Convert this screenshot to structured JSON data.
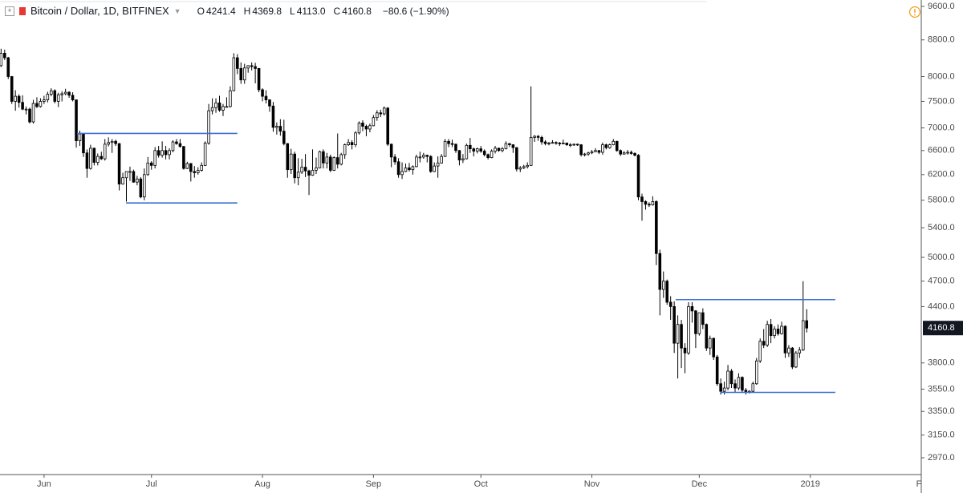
{
  "header": {
    "title": "Bitcoin / Dollar, 1D, BITFINEX",
    "ohlc_labels": [
      "O",
      "H",
      "L",
      "C"
    ],
    "ohlc_values": [
      "4241.4",
      "4369.8",
      "4113.0",
      "4160.8"
    ],
    "change": "−80.6 (−1.90%)"
  },
  "chart_data": {
    "type": "candlestick",
    "log_scale": true,
    "grid": false,
    "up_color": "#ffffff",
    "down_color": "#000000",
    "border_color": "#000000",
    "level_color": "#3b6fd4",
    "ylim": [
      2843,
      9761
    ],
    "xlim": [
      -0.3,
      257
    ],
    "yticks": [
      {
        "value": 9600,
        "label": "9600.0"
      },
      {
        "value": 8800,
        "label": "8800.0"
      },
      {
        "value": 8000,
        "label": "8000.0"
      },
      {
        "value": 7500,
        "label": "7500.0"
      },
      {
        "value": 7000,
        "label": "7000.0"
      },
      {
        "value": 6600,
        "label": "6600.0"
      },
      {
        "value": 6200,
        "label": "6200.0"
      },
      {
        "value": 5800,
        "label": "5800.0"
      },
      {
        "value": 5400,
        "label": "5400.0"
      },
      {
        "value": 5000,
        "label": "5000.0"
      },
      {
        "value": 4700,
        "label": "4700.0"
      },
      {
        "value": 4400,
        "label": "4400.0"
      },
      {
        "value": 3800,
        "label": "3800.0"
      },
      {
        "value": 3550,
        "label": "3550.0"
      },
      {
        "value": 3350,
        "label": "3350.0"
      },
      {
        "value": 3150,
        "label": "3150.0"
      },
      {
        "value": 2970,
        "label": "2970.0"
      }
    ],
    "xticks": [
      {
        "value": 12,
        "label": "Jun"
      },
      {
        "value": 42,
        "label": "Jul"
      },
      {
        "value": 73,
        "label": "Aug"
      },
      {
        "value": 104,
        "label": "Sep"
      },
      {
        "value": 134,
        "label": "Oct"
      },
      {
        "value": 165,
        "label": "Nov"
      },
      {
        "value": 195,
        "label": "Dec"
      },
      {
        "value": 226,
        "label": "2019"
      },
      {
        "value": 257,
        "label": "Fe"
      }
    ],
    "last_price": {
      "value": 4160.8,
      "label": "4160.8"
    },
    "levels": [
      {
        "value": 6900,
        "from": 21.2,
        "to": 66
      },
      {
        "value": 5760,
        "from": 34.9,
        "to": 66
      },
      {
        "value": 4480,
        "from": 188.4,
        "to": 233
      },
      {
        "value": 3520,
        "from": 201,
        "to": 233
      }
    ],
    "candles": [
      [
        8230,
        8600,
        8200,
        8500
      ],
      [
        8500,
        8580,
        8350,
        8400
      ],
      [
        8400,
        8420,
        7950,
        8000
      ],
      [
        8000,
        8010,
        7450,
        7500
      ],
      [
        7500,
        7720,
        7320,
        7600
      ],
      [
        7600,
        7640,
        7380,
        7480
      ],
      [
        7480,
        7620,
        7330,
        7350
      ],
      [
        7350,
        7400,
        7250,
        7350
      ],
      [
        7350,
        7380,
        7080,
        7110
      ],
      [
        7110,
        7530,
        7080,
        7460
      ],
      [
        7460,
        7580,
        7370,
        7400
      ],
      [
        7400,
        7560,
        7380,
        7500
      ],
      [
        7500,
        7610,
        7450,
        7530
      ],
      [
        7530,
        7690,
        7480,
        7640
      ],
      [
        7640,
        7760,
        7600,
        7710
      ],
      [
        7710,
        7740,
        7460,
        7500
      ],
      [
        7500,
        7670,
        7390,
        7630
      ],
      [
        7630,
        7700,
        7500,
        7650
      ],
      [
        7650,
        7750,
        7620,
        7680
      ],
      [
        7680,
        7700,
        7570,
        7620
      ],
      [
        7620,
        7680,
        7500,
        7530
      ],
      [
        7530,
        7530,
        6650,
        6770
      ],
      [
        6770,
        6950,
        6680,
        6890
      ],
      [
        6890,
        6900,
        6490,
        6560
      ],
      [
        6560,
        6620,
        6150,
        6300
      ],
      [
        6300,
        6700,
        6280,
        6640
      ],
      [
        6640,
        6650,
        6350,
        6400
      ],
      [
        6400,
        6550,
        6350,
        6500
      ],
      [
        6500,
        6580,
        6440,
        6460
      ],
      [
        6460,
        6800,
        6430,
        6710
      ],
      [
        6710,
        6830,
        6670,
        6740
      ],
      [
        6740,
        6800,
        6560,
        6760
      ],
      [
        6760,
        6790,
        6680,
        6720
      ],
      [
        6720,
        6730,
        5950,
        6050
      ],
      [
        6050,
        6230,
        6040,
        6150
      ],
      [
        6150,
        6250,
        5780,
        6250
      ],
      [
        6250,
        6330,
        6100,
        6250
      ],
      [
        6250,
        6280,
        6070,
        6080
      ],
      [
        6080,
        6180,
        6030,
        6130
      ],
      [
        6130,
        6160,
        5830,
        5850
      ],
      [
        5850,
        6300,
        5800,
        6200
      ],
      [
        6200,
        6490,
        6180,
        6390
      ],
      [
        6390,
        6420,
        6280,
        6350
      ],
      [
        6350,
        6660,
        6300,
        6600
      ],
      [
        6600,
        6680,
        6480,
        6520
      ],
      [
        6520,
        6760,
        6480,
        6600
      ],
      [
        6600,
        6680,
        6450,
        6530
      ],
      [
        6530,
        6640,
        6450,
        6600
      ],
      [
        6600,
        6780,
        6570,
        6750
      ],
      [
        6750,
        6800,
        6700,
        6720
      ],
      [
        6720,
        6800,
        6650,
        6670
      ],
      [
        6670,
        6680,
        6280,
        6300
      ],
      [
        6300,
        6410,
        6290,
        6380
      ],
      [
        6380,
        6390,
        6090,
        6250
      ],
      [
        6250,
        6340,
        6150,
        6230
      ],
      [
        6230,
        6320,
        6200,
        6270
      ],
      [
        6270,
        6400,
        6250,
        6350
      ],
      [
        6350,
        6760,
        6340,
        6730
      ],
      [
        6730,
        7450,
        6700,
        7320
      ],
      [
        7320,
        7560,
        7250,
        7380
      ],
      [
        7380,
        7560,
        7280,
        7470
      ],
      [
        7470,
        7610,
        7300,
        7330
      ],
      [
        7330,
        7450,
        7220,
        7400
      ],
      [
        7400,
        7580,
        7380,
        7400
      ],
      [
        7400,
        7800,
        7380,
        7710
      ],
      [
        7710,
        8500,
        7700,
        8400
      ],
      [
        8400,
        8480,
        8050,
        8170
      ],
      [
        8170,
        8300,
        7850,
        7930
      ],
      [
        7930,
        8270,
        7850,
        8180
      ],
      [
        8180,
        8240,
        8080,
        8230
      ],
      [
        8230,
        8300,
        8130,
        8210
      ],
      [
        8210,
        8290,
        7860,
        8170
      ],
      [
        8170,
        8180,
        7680,
        7730
      ],
      [
        7730,
        7760,
        7500,
        7600
      ],
      [
        7600,
        7720,
        7460,
        7530
      ],
      [
        7530,
        7540,
        7300,
        7410
      ],
      [
        7410,
        7490,
        6930,
        7010
      ],
      [
        7010,
        7100,
        6880,
        7030
      ],
      [
        7030,
        7160,
        6860,
        6940
      ],
      [
        6940,
        7150,
        6690,
        6720
      ],
      [
        6720,
        6730,
        6150,
        6280
      ],
      [
        6280,
        6630,
        6210,
        6540
      ],
      [
        6540,
        6580,
        6060,
        6150
      ],
      [
        6150,
        6470,
        6030,
        6240
      ],
      [
        6240,
        6460,
        6210,
        6320
      ],
      [
        6320,
        6540,
        6160,
        6260
      ],
      [
        6260,
        6280,
        5880,
        6190
      ],
      [
        6190,
        6620,
        6180,
        6270
      ],
      [
        6270,
        6480,
        6210,
        6310
      ],
      [
        6310,
        6600,
        6300,
        6580
      ],
      [
        6580,
        6620,
        6300,
        6390
      ],
      [
        6390,
        6560,
        6300,
        6490
      ],
      [
        6490,
        6530,
        6240,
        6270
      ],
      [
        6270,
        6500,
        6260,
        6480
      ],
      [
        6480,
        6900,
        6300,
        6370
      ],
      [
        6370,
        6560,
        6350,
        6530
      ],
      [
        6530,
        6720,
        6460,
        6700
      ],
      [
        6700,
        6800,
        6680,
        6740
      ],
      [
        6740,
        6780,
        6620,
        6700
      ],
      [
        6700,
        6940,
        6660,
        6910
      ],
      [
        6910,
        7120,
        6880,
        7090
      ],
      [
        7090,
        7140,
        6940,
        7030
      ],
      [
        7030,
        7060,
        6850,
        6980
      ],
      [
        6980,
        7080,
        6920,
        7040
      ],
      [
        7040,
        7240,
        7030,
        7190
      ],
      [
        7190,
        7330,
        7130,
        7280
      ],
      [
        7280,
        7340,
        7200,
        7260
      ],
      [
        7260,
        7400,
        7230,
        7370
      ],
      [
        7370,
        7390,
        6680,
        6710
      ],
      [
        6710,
        6720,
        6320,
        6490
      ],
      [
        6490,
        6540,
        6360,
        6410
      ],
      [
        6410,
        6470,
        6150,
        6200
      ],
      [
        6200,
        6400,
        6130,
        6250
      ],
      [
        6250,
        6380,
        6240,
        6310
      ],
      [
        6310,
        6390,
        6250,
        6280
      ],
      [
        6280,
        6350,
        6200,
        6330
      ],
      [
        6330,
        6530,
        6320,
        6490
      ],
      [
        6490,
        6580,
        6400,
        6490
      ],
      [
        6490,
        6560,
        6460,
        6520
      ],
      [
        6520,
        6530,
        6400,
        6500
      ],
      [
        6500,
        6520,
        6230,
        6250
      ],
      [
        6250,
        6400,
        6240,
        6340
      ],
      [
        6340,
        6500,
        6150,
        6390
      ],
      [
        6390,
        6540,
        6380,
        6500
      ],
      [
        6500,
        6800,
        6490,
        6760
      ],
      [
        6760,
        6800,
        6660,
        6720
      ],
      [
        6720,
        6790,
        6660,
        6710
      ],
      [
        6710,
        6720,
        6560,
        6600
      ],
      [
        6600,
        6610,
        6350,
        6440
      ],
      [
        6440,
        6540,
        6390,
        6460
      ],
      [
        6460,
        6720,
        6450,
        6690
      ],
      [
        6690,
        6820,
        6560,
        6630
      ],
      [
        6630,
        6650,
        6500,
        6590
      ],
      [
        6590,
        6650,
        6550,
        6630
      ],
      [
        6630,
        6680,
        6560,
        6590
      ],
      [
        6590,
        6620,
        6500,
        6530
      ],
      [
        6530,
        6550,
        6450,
        6480
      ],
      [
        6480,
        6620,
        6470,
        6590
      ],
      [
        6590,
        6680,
        6550,
        6640
      ],
      [
        6640,
        6650,
        6580,
        6600
      ],
      [
        6600,
        6660,
        6570,
        6630
      ],
      [
        6630,
        6760,
        6620,
        6720
      ],
      [
        6720,
        6730,
        6660,
        6700
      ],
      [
        6700,
        6710,
        6560,
        6650
      ],
      [
        6650,
        6660,
        6250,
        6290
      ],
      [
        6290,
        6340,
        6240,
        6310
      ],
      [
        6310,
        6360,
        6290,
        6330
      ],
      [
        6330,
        6400,
        6300,
        6350
      ],
      [
        6350,
        7800,
        6340,
        6830
      ],
      [
        6830,
        6870,
        6750,
        6850
      ],
      [
        6850,
        6870,
        6770,
        6830
      ],
      [
        6830,
        6860,
        6700,
        6750
      ],
      [
        6750,
        6780,
        6690,
        6720
      ],
      [
        6720,
        6750,
        6690,
        6730
      ],
      [
        6730,
        6780,
        6720,
        6740
      ],
      [
        6740,
        6760,
        6700,
        6730
      ],
      [
        6730,
        6750,
        6680,
        6720
      ],
      [
        6720,
        6790,
        6710,
        6730
      ],
      [
        6730,
        6740,
        6680,
        6700
      ],
      [
        6700,
        6730,
        6660,
        6700
      ],
      [
        6700,
        6720,
        6680,
        6710
      ],
      [
        6710,
        6720,
        6680,
        6700
      ],
      [
        6700,
        6710,
        6500,
        6530
      ],
      [
        6530,
        6560,
        6500,
        6540
      ],
      [
        6540,
        6580,
        6510,
        6560
      ],
      [
        6560,
        6610,
        6540,
        6580
      ],
      [
        6580,
        6640,
        6570,
        6600
      ],
      [
        6600,
        6610,
        6540,
        6570
      ],
      [
        6570,
        6740,
        6530,
        6700
      ],
      [
        6700,
        6720,
        6620,
        6650
      ],
      [
        6650,
        6720,
        6630,
        6700
      ],
      [
        6700,
        6800,
        6690,
        6760
      ],
      [
        6760,
        6770,
        6580,
        6600
      ],
      [
        6600,
        6620,
        6510,
        6540
      ],
      [
        6540,
        6590,
        6530,
        6560
      ],
      [
        6560,
        6610,
        6530,
        6570
      ],
      [
        6570,
        6600,
        6530,
        6550
      ],
      [
        6550,
        6570,
        6500,
        6520
      ],
      [
        6520,
        6540,
        5800,
        5850
      ],
      [
        5850,
        5900,
        5500,
        5780
      ],
      [
        5780,
        5800,
        5660,
        5740
      ],
      [
        5740,
        5770,
        5700,
        5730
      ],
      [
        5730,
        5860,
        5720,
        5780
      ],
      [
        5780,
        5800,
        4900,
        5050
      ],
      [
        5050,
        5100,
        4300,
        4600
      ],
      [
        4600,
        4820,
        4500,
        4700
      ],
      [
        4700,
        4720,
        4420,
        4450
      ],
      [
        4450,
        4520,
        4250,
        4400
      ],
      [
        4400,
        4460,
        3900,
        4000
      ],
      [
        4000,
        4300,
        3650,
        4200
      ],
      [
        4200,
        4250,
        3750,
        3950
      ],
      [
        3950,
        4000,
        3700,
        3900
      ],
      [
        3900,
        4450,
        3880,
        4400
      ],
      [
        4400,
        4450,
        4220,
        4350
      ],
      [
        4350,
        4360,
        3950,
        4100
      ],
      [
        4100,
        4330,
        4080,
        4330
      ],
      [
        4330,
        4380,
        4150,
        4200
      ],
      [
        4200,
        4210,
        3920,
        3950
      ],
      [
        3950,
        4080,
        3880,
        4050
      ],
      [
        4050,
        4060,
        3830,
        3860
      ],
      [
        3860,
        3880,
        3580,
        3600
      ],
      [
        3600,
        3650,
        3500,
        3530
      ],
      [
        3530,
        3620,
        3500,
        3560
      ],
      [
        3560,
        3780,
        3540,
        3720
      ],
      [
        3720,
        3740,
        3560,
        3600
      ],
      [
        3600,
        3640,
        3520,
        3560
      ],
      [
        3560,
        3700,
        3540,
        3660
      ],
      [
        3660,
        3670,
        3520,
        3540
      ],
      [
        3540,
        3560,
        3500,
        3520
      ],
      [
        3520,
        3540,
        3510,
        3530
      ],
      [
        3530,
        3620,
        3520,
        3600
      ],
      [
        3600,
        3850,
        3590,
        3820
      ],
      [
        3820,
        4050,
        3800,
        4020
      ],
      [
        4020,
        4150,
        3950,
        3980
      ],
      [
        3980,
        4240,
        3960,
        4200
      ],
      [
        4200,
        4260,
        4000,
        4080
      ],
      [
        4080,
        4180,
        4050,
        4150
      ],
      [
        4150,
        4200,
        4080,
        4100
      ],
      [
        4100,
        4230,
        4090,
        4180
      ],
      [
        4180,
        4190,
        3850,
        3900
      ],
      [
        3900,
        3980,
        3860,
        3950
      ],
      [
        3950,
        3960,
        3740,
        3760
      ],
      [
        3760,
        3920,
        3750,
        3900
      ],
      [
        3900,
        3960,
        3850,
        3930
      ],
      [
        3930,
        4700,
        3920,
        4241.4
      ],
      [
        4241.4,
        4369.8,
        4113.0,
        4160.8
      ]
    ]
  }
}
